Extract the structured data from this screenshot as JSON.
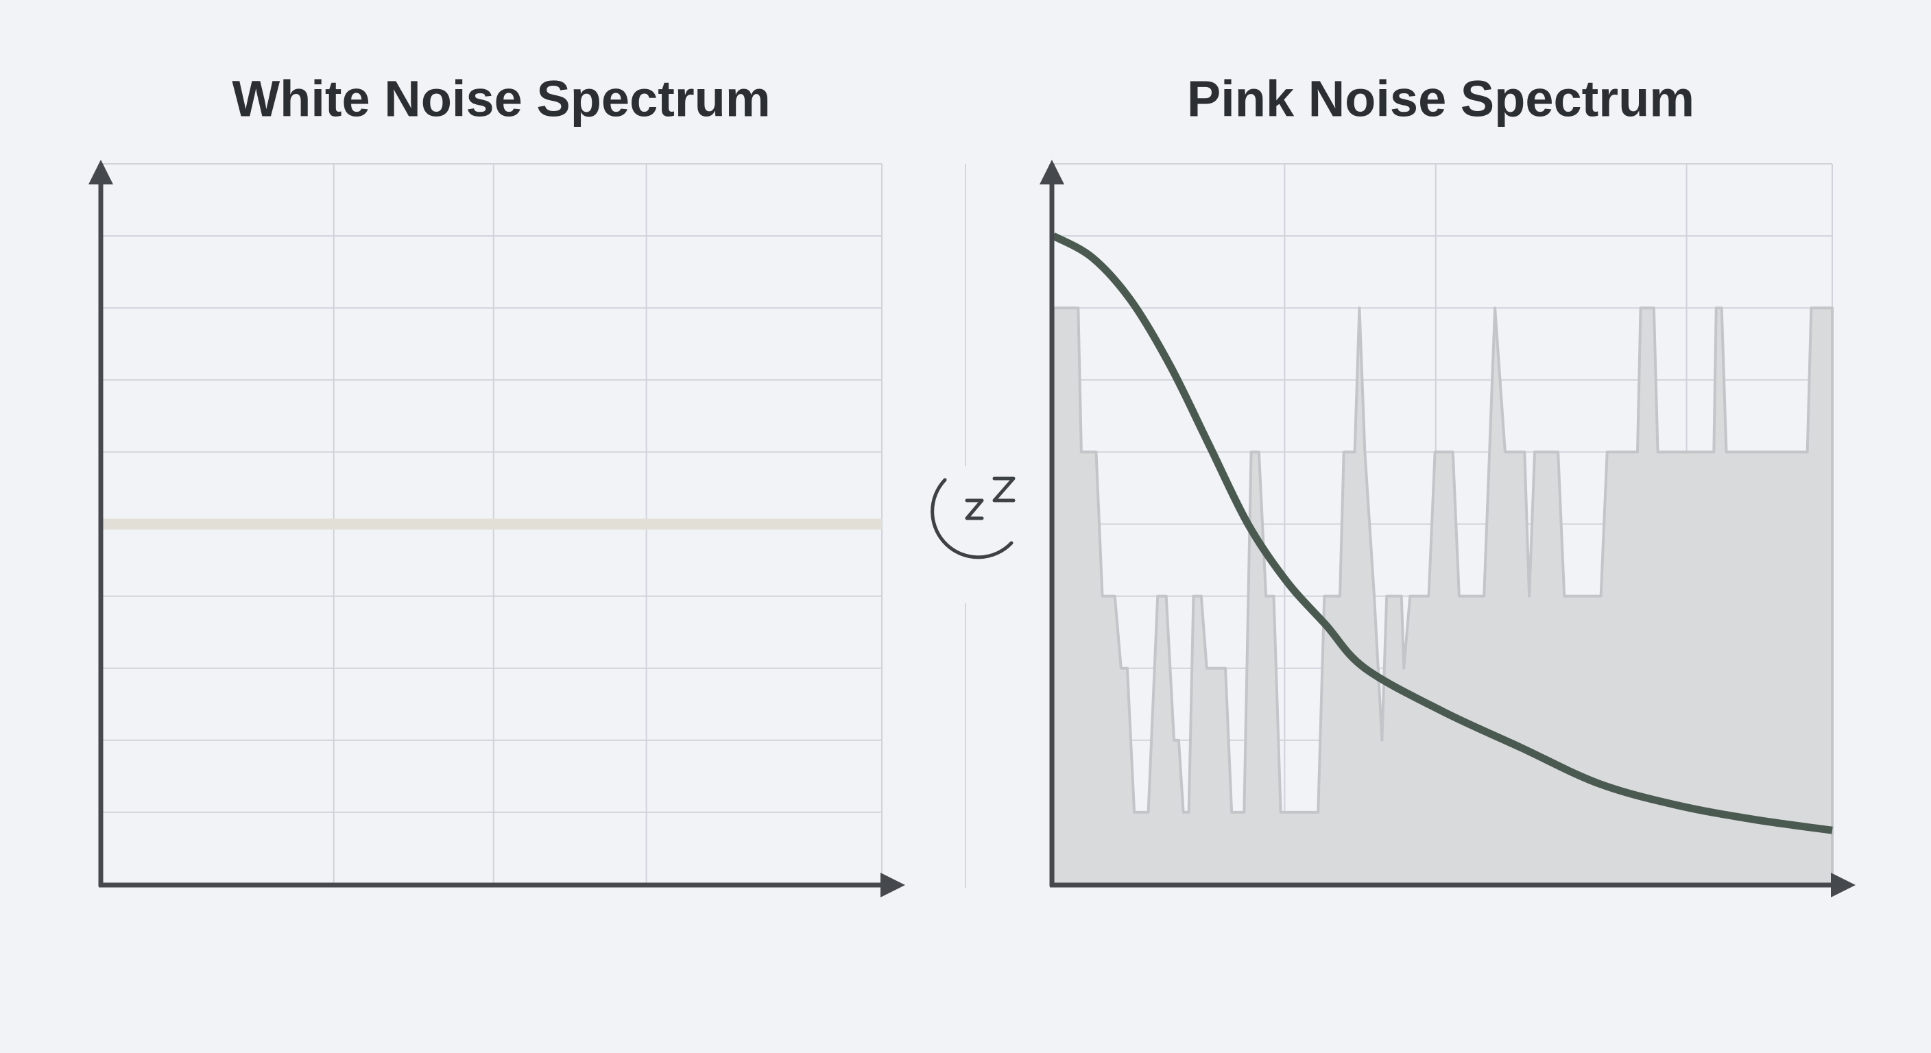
{
  "chart_data": [
    {
      "type": "line",
      "title": "White Noise Spectrum",
      "xlim": [
        0,
        100
      ],
      "ylim": [
        0,
        10
      ],
      "grid": true,
      "series": [
        {
          "x": [
            0,
            100
          ],
          "values": [
            5,
            5
          ],
          "color": "#e2dfd6",
          "style": "line"
        }
      ]
    },
    {
      "type": "line",
      "title": "Pink Noise Spectrum",
      "xlim": [
        0,
        100
      ],
      "ylim": [
        0,
        10
      ],
      "grid": true,
      "series": [
        {
          "style": "area",
          "color": "#d9dadc",
          "stroke": "#c3c5c8",
          "x": [
            0,
            3.2,
            3.6,
            5.5,
            6.3,
            7.9,
            8.7,
            9.5,
            10.4,
            12.2,
            13.4,
            14.5,
            15.5,
            16.1,
            16.7,
            17.4,
            18,
            19,
            19.7,
            22.1,
            22.9,
            24.5,
            25.4,
            26.4,
            27.3,
            28.3,
            29.2,
            34,
            34.8,
            36.8,
            37.3,
            38.7,
            39.3,
            40,
            41.2,
            42.2,
            42.8,
            44.7,
            45,
            45.8,
            48.2,
            49,
            51.3,
            52.1,
            55.3,
            56.7,
            58,
            60.5,
            61.1,
            61.8,
            64.8,
            65.6,
            70.3,
            71.1,
            75,
            75.4,
            77.1,
            77.6,
            84.8,
            85.1,
            85.8,
            86.4,
            96.8,
            97.3,
            100
          ],
          "values": [
            8,
            8,
            6,
            6,
            4,
            4,
            3,
            3,
            1,
            1,
            4,
            4,
            2,
            2,
            1,
            1,
            4,
            4,
            3,
            3,
            1,
            1,
            6,
            6,
            4,
            4,
            1,
            1,
            4,
            4,
            6,
            6,
            8,
            6,
            4,
            2,
            4,
            4,
            3,
            4,
            4,
            6,
            6,
            4,
            4,
            8,
            6,
            6,
            4,
            6,
            6,
            4,
            4,
            6,
            6,
            8,
            8,
            6,
            6,
            8,
            8,
            6,
            6,
            8,
            8
          ]
        },
        {
          "style": "line",
          "color": "#4a5a50",
          "x": [
            0,
            5,
            10,
            15,
            20,
            25,
            30,
            35,
            40,
            50,
            60,
            70,
            80,
            90,
            100
          ],
          "values": [
            9,
            8.7,
            8.1,
            7.2,
            6.1,
            5.0,
            4.2,
            3.6,
            3.0,
            2.4,
            1.9,
            1.4,
            1.1,
            0.9,
            0.75
          ]
        }
      ]
    }
  ]
}
